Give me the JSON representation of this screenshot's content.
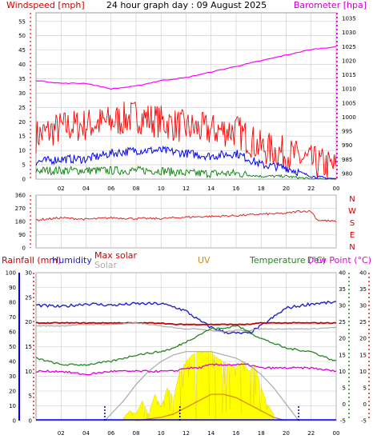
{
  "title": "24 hour graph day : 09 August 2025",
  "x_ticks": [
    "02",
    "04",
    "06",
    "08",
    "10",
    "12",
    "14",
    "16",
    "18",
    "20",
    "22",
    "00"
  ],
  "colors": {
    "wind": "#ff0000",
    "gust": "#ff0000",
    "wind_avg": "#0000ff",
    "wind_green": "#008000",
    "barometer": "#ff00ff",
    "direction": "#dd2222",
    "humidity": "#2222cc",
    "max_solar": "#cc0000",
    "solar": "#aaaaaa",
    "uv": "#dd8800",
    "temperature": "#228822",
    "dew_point": "#dd00dd",
    "rain": "#0000ff",
    "grid": "#c8c8c8",
    "left_axis": "#ff6666",
    "baro_axis": "#ff00ff",
    "solar_fill": "#ffff00",
    "uv_fill": "#ffff00"
  },
  "chart_data": [
    {
      "type": "line",
      "name": "wind",
      "left_label": "Windspeed [mph]",
      "right_label": "Barometer [hpa]",
      "left_ticks": [
        0,
        5,
        10,
        15,
        20,
        25,
        30,
        35,
        40,
        45,
        50,
        55
      ],
      "right_ticks": [
        980,
        985,
        990,
        995,
        1000,
        1005,
        1010,
        1015,
        1020,
        1025,
        1030,
        1035
      ],
      "ylim_left": [
        0,
        58
      ],
      "ylim_right": [
        978,
        1037
      ],
      "x": [
        0,
        2,
        4,
        6,
        8,
        10,
        12,
        14,
        16,
        18,
        20,
        22,
        24
      ],
      "series": [
        {
          "key": "gust",
          "values": [
            15,
            18,
            19,
            20,
            22,
            20,
            18,
            17,
            17,
            11,
            9,
            6,
            4
          ]
        },
        {
          "key": "wind_avg",
          "values": [
            6,
            7,
            7,
            9,
            10,
            10,
            9,
            8,
            9,
            5,
            4,
            1,
            0
          ]
        },
        {
          "key": "wind_green",
          "values": [
            3,
            3,
            3,
            3,
            3,
            3,
            2,
            2,
            2,
            1,
            1,
            0,
            0
          ]
        },
        {
          "key": "barometer",
          "values": [
            1013,
            1012,
            1012,
            1010,
            1011,
            1013,
            1014,
            1016,
            1018,
            1020,
            1022,
            1024,
            1025
          ]
        }
      ]
    },
    {
      "type": "line",
      "name": "direction",
      "right_labels": [
        "N",
        "W",
        "S",
        "E",
        "N"
      ],
      "left_ticks": [
        0,
        90,
        180,
        270,
        360
      ],
      "ylim": [
        0,
        360
      ],
      "x": [
        0,
        2,
        4,
        6,
        8,
        10,
        12,
        14,
        16,
        18,
        20,
        21,
        22,
        22.5,
        24
      ],
      "values": [
        190,
        205,
        195,
        205,
        200,
        200,
        210,
        215,
        220,
        230,
        235,
        250,
        250,
        190,
        180
      ]
    },
    {
      "type": "line",
      "name": "climate",
      "labels": {
        "rainfall": "Rainfall (mm)",
        "humidity": "Humidity",
        "max_solar": "Max solar",
        "solar": "Solar",
        "uv": "UV",
        "temperature": "Temperature (°C)",
        "dew_point": "Dew Point (°C)"
      },
      "humidity_ticks": [
        0,
        10,
        20,
        30,
        40,
        50,
        60,
        70,
        80,
        90,
        100
      ],
      "rain_ticks": [
        0,
        5,
        10,
        15,
        20,
        25,
        30
      ],
      "temp_ticks": [
        -5,
        0,
        5,
        10,
        15,
        20,
        25,
        30,
        35,
        40
      ],
      "ylim_humidity": [
        0,
        100
      ],
      "ylim_temp": [
        -5,
        40
      ],
      "x": [
        0,
        2,
        4,
        6,
        8,
        10,
        11,
        12,
        13,
        14,
        15,
        16,
        17,
        18,
        20,
        22,
        24
      ],
      "series": [
        {
          "key": "humidity",
          "values": [
            78,
            77,
            79,
            78,
            79,
            79,
            77,
            74,
            68,
            63,
            60,
            59,
            59,
            64,
            76,
            79,
            80
          ]
        },
        {
          "key": "max_solar",
          "values": [
            66,
            66,
            66,
            66,
            66,
            66,
            65,
            65,
            65,
            65,
            65,
            65,
            65,
            66,
            66,
            66,
            66
          ]
        },
        {
          "key": "solar",
          "values": [
            64,
            64,
            65,
            65,
            66,
            64,
            63,
            62,
            62,
            61,
            60,
            61,
            61,
            62,
            62,
            62,
            63
          ]
        },
        {
          "key": "temperature",
          "values": [
            14,
            12,
            12,
            13,
            15,
            16,
            17,
            19,
            21,
            23,
            23,
            24,
            22,
            20,
            17,
            16,
            13
          ]
        },
        {
          "key": "dew_point",
          "values": [
            10,
            10,
            9,
            10,
            10,
            10,
            10,
            11,
            11,
            12,
            12,
            12,
            12,
            11,
            11,
            11,
            10
          ]
        }
      ],
      "solar_curve": {
        "x": [
          5.5,
          7,
          8,
          9,
          10,
          11,
          12,
          13,
          14,
          15,
          16,
          17,
          18,
          19,
          20,
          21
        ],
        "values": [
          0,
          6,
          11,
          15,
          18,
          20,
          21,
          21,
          21,
          20,
          19,
          17,
          14,
          10,
          5,
          0
        ]
      },
      "solar_actual": {
        "x": [
          7,
          7.5,
          8,
          8.5,
          9,
          9.5,
          10,
          10.5,
          11,
          11.5,
          12,
          12.5,
          13,
          13.5,
          14,
          14.5,
          15,
          15.5,
          16,
          16.5,
          17,
          17.5,
          18,
          18.5,
          19
        ],
        "values": [
          1,
          3,
          2,
          6,
          2,
          8,
          4,
          10,
          7,
          15,
          18,
          20,
          21,
          21,
          21,
          19,
          18,
          17,
          16,
          18,
          15,
          17,
          10,
          5,
          2
        ]
      },
      "uv": {
        "x": [
          8,
          9,
          10,
          11,
          12,
          13,
          14,
          15,
          16,
          17,
          18,
          19,
          20
        ],
        "values": [
          0,
          0.5,
          1,
          2,
          4,
          6,
          8,
          8,
          7,
          5,
          3,
          1,
          0
        ]
      },
      "markers_x": [
        5.5,
        11.5,
        21
      ]
    }
  ]
}
